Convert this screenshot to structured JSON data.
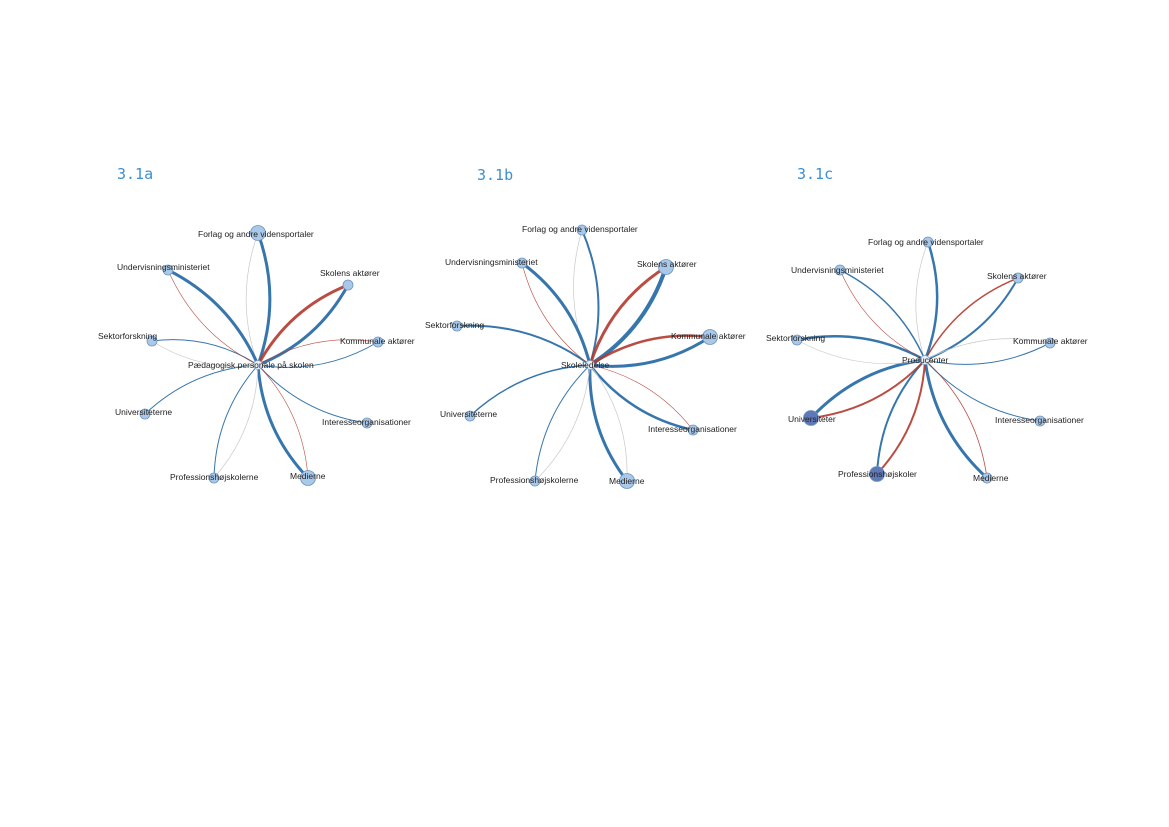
{
  "colors": {
    "blue": "#2c6fa8",
    "red": "#b33a2e",
    "node": "#a9c9ea",
    "node_dark": "#5f78b8",
    "label": "#3d8fd1"
  },
  "diagrams": [
    {
      "label": "3.1a",
      "center": "Pædagogisk personale på skolen",
      "nodes": [
        {
          "name": "Forlag og andre vidensportaler",
          "edge": "blue",
          "weight": 3,
          "ghost": true,
          "size": 2
        },
        {
          "name": "Skolens aktører",
          "edge": "blue",
          "weight": 3,
          "red_weight": 3,
          "size": 1
        },
        {
          "name": "Kommunale aktører",
          "edge": "blue",
          "weight": 1,
          "red_weight": 0.6,
          "size": 1
        },
        {
          "name": "Interesseorganisationer",
          "edge": "blue",
          "weight": 1,
          "size": 1
        },
        {
          "name": "Medierne",
          "edge": "blue",
          "weight": 3,
          "red_weight": 0.6,
          "size": 2
        },
        {
          "name": "Professionshøjskolerne",
          "edge": "blue",
          "weight": 1,
          "ghost": true,
          "size": 1
        },
        {
          "name": "Universiteterne",
          "edge": "blue",
          "weight": 1,
          "size": 1
        },
        {
          "name": "Sektorforskning",
          "edge": "blue",
          "weight": 1,
          "ghost": true,
          "size": 1
        },
        {
          "name": "Undervisningsministeriet",
          "edge": "blue",
          "weight": 3,
          "red_weight": 0.6,
          "size": 1
        }
      ]
    },
    {
      "label": "3.1b",
      "center": "Skoleledelse",
      "nodes": [
        {
          "name": "Forlag og andre vidensportaler",
          "edge": "blue",
          "weight": 2,
          "ghost": true,
          "size": 1
        },
        {
          "name": "Skolens aktører",
          "edge": "blue",
          "weight": 4,
          "red_weight": 3,
          "size": 2
        },
        {
          "name": "Kommunale aktører",
          "edge": "blue",
          "weight": 3,
          "red_weight": 2.5,
          "size": 2
        },
        {
          "name": "Interesseorganisationer",
          "edge": "blue",
          "weight": 2.5,
          "red_weight": 0.6,
          "size": 1
        },
        {
          "name": "Medierne",
          "edge": "blue",
          "weight": 3,
          "ghost": true,
          "size": 2
        },
        {
          "name": "Professionshøjskolerne",
          "edge": "blue",
          "weight": 1,
          "ghost": true,
          "size": 1
        },
        {
          "name": "Universiteterne",
          "edge": "blue",
          "weight": 1.5,
          "size": 1
        },
        {
          "name": "Sektorforskning",
          "edge": "blue",
          "weight": 2,
          "size": 1
        },
        {
          "name": "Undervisningsministeriet",
          "edge": "blue",
          "weight": 3,
          "red_weight": 0.6,
          "size": 1
        }
      ]
    },
    {
      "label": "3.1c",
      "center": "Producenter",
      "nodes": [
        {
          "name": "Forlag og andre vidensportaler",
          "edge": "blue",
          "weight": 2.5,
          "ghost": true,
          "size": 1
        },
        {
          "name": "Skolens aktører",
          "edge": "blue",
          "weight": 2,
          "red_weight": 1.5,
          "size": 1
        },
        {
          "name": "Kommunale aktører",
          "edge": "blue",
          "weight": 1,
          "ghost": true,
          "size": 1
        },
        {
          "name": "Interesseorganisationer",
          "edge": "blue",
          "weight": 1,
          "size": 1
        },
        {
          "name": "Medierne",
          "edge": "blue",
          "weight": 3,
          "red_weight": 0.8,
          "size": 1
        },
        {
          "name": "Professionshøjskoler",
          "edge": "blue",
          "weight": 2,
          "red_weight": 2,
          "size": 2,
          "dark": true
        },
        {
          "name": "Universiteter",
          "edge": "blue",
          "weight": 3,
          "red_weight": 2,
          "size": 2,
          "dark": true
        },
        {
          "name": "Sektorforskning",
          "edge": "blue",
          "weight": 2.5,
          "ghost": true,
          "size": 1
        },
        {
          "name": "Undervisningsministeriet",
          "edge": "blue",
          "weight": 1.5,
          "red_weight": 0.6,
          "size": 1
        }
      ]
    }
  ]
}
